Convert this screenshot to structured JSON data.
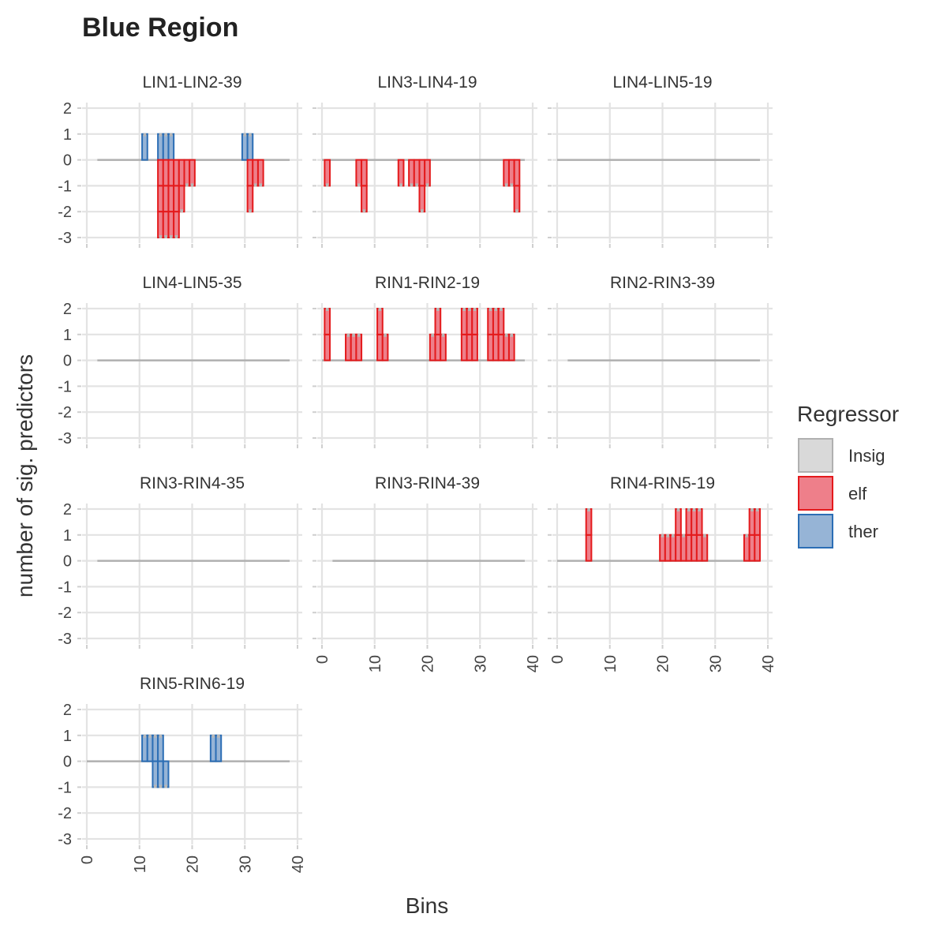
{
  "chart_data": {
    "type": "bar",
    "title": "Blue Region",
    "xlabel": "Bins",
    "ylabel": "number of sig. predictors",
    "xlim": [
      0,
      40
    ],
    "ylim": [
      -3,
      2
    ],
    "x_ticks": [
      0,
      10,
      20,
      30,
      40
    ],
    "y_ticks": [
      2,
      1,
      0,
      -1,
      -2,
      -3
    ],
    "grid": true,
    "legend": {
      "title": "Regressor",
      "placement": "right",
      "entries": [
        {
          "label": "Insig",
          "fill": "#d9d9d9",
          "stroke": "#b0b0b0"
        },
        {
          "label": "elf",
          "fill": "#ee7f8a",
          "stroke": "#e41a1c"
        },
        {
          "label": "ther",
          "fill": "#96b4d6",
          "stroke": "#2c6eb5"
        }
      ]
    },
    "panels": [
      {
        "name": "LIN1-LIN2-39",
        "insig_x": [
          2,
          38
        ],
        "bars": [
          {
            "x": 11,
            "value": 1,
            "regressor": "ther"
          },
          {
            "x": 14,
            "value": 1,
            "regressor": "ther"
          },
          {
            "x": 15,
            "value": 1,
            "regressor": "ther"
          },
          {
            "x": 16,
            "value": 1,
            "regressor": "ther"
          },
          {
            "x": 30,
            "value": 1,
            "regressor": "ther"
          },
          {
            "x": 31,
            "value": 1,
            "regressor": "ther"
          },
          {
            "x": 14,
            "value": -3,
            "regressor": "elf"
          },
          {
            "x": 15,
            "value": -3,
            "regressor": "elf"
          },
          {
            "x": 16,
            "value": -3,
            "regressor": "elf"
          },
          {
            "x": 17,
            "value": -3,
            "regressor": "elf"
          },
          {
            "x": 18,
            "value": -2,
            "regressor": "elf"
          },
          {
            "x": 19,
            "value": -1,
            "regressor": "elf"
          },
          {
            "x": 20,
            "value": -1,
            "regressor": "elf"
          },
          {
            "x": 31,
            "value": -2,
            "regressor": "elf"
          },
          {
            "x": 32,
            "value": -1,
            "regressor": "elf"
          },
          {
            "x": 33,
            "value": -1,
            "regressor": "elf"
          }
        ]
      },
      {
        "name": "LIN3-LIN4-19",
        "insig_x": [
          0,
          38
        ],
        "bars": [
          {
            "x": 1,
            "value": -1,
            "regressor": "elf"
          },
          {
            "x": 7,
            "value": -1,
            "regressor": "elf"
          },
          {
            "x": 8,
            "value": -2,
            "regressor": "elf"
          },
          {
            "x": 15,
            "value": -1,
            "regressor": "elf"
          },
          {
            "x": 17,
            "value": -1,
            "regressor": "elf"
          },
          {
            "x": 18,
            "value": -1,
            "regressor": "elf"
          },
          {
            "x": 19,
            "value": -2,
            "regressor": "elf"
          },
          {
            "x": 20,
            "value": -1,
            "regressor": "elf"
          },
          {
            "x": 35,
            "value": -1,
            "regressor": "elf"
          },
          {
            "x": 36,
            "value": -1,
            "regressor": "elf"
          },
          {
            "x": 37,
            "value": -2,
            "regressor": "elf"
          }
        ]
      },
      {
        "name": "LIN4-LIN5-19",
        "insig_x": [
          0,
          38
        ],
        "bars": []
      },
      {
        "name": "LIN4-LIN5-35",
        "insig_x": [
          2,
          38
        ],
        "bars": []
      },
      {
        "name": "RIN1-RIN2-19",
        "insig_x": [
          0,
          38
        ],
        "bars": [
          {
            "x": 1,
            "value": 2,
            "regressor": "elf"
          },
          {
            "x": 5,
            "value": 1,
            "regressor": "elf"
          },
          {
            "x": 6,
            "value": 1,
            "regressor": "elf"
          },
          {
            "x": 7,
            "value": 1,
            "regressor": "elf"
          },
          {
            "x": 11,
            "value": 2,
            "regressor": "elf"
          },
          {
            "x": 12,
            "value": 1,
            "regressor": "elf"
          },
          {
            "x": 21,
            "value": 1,
            "regressor": "elf"
          },
          {
            "x": 22,
            "value": 2,
            "regressor": "elf"
          },
          {
            "x": 23,
            "value": 1,
            "regressor": "elf"
          },
          {
            "x": 27,
            "value": 2,
            "regressor": "elf"
          },
          {
            "x": 28,
            "value": 2,
            "regressor": "elf"
          },
          {
            "x": 29,
            "value": 2,
            "regressor": "elf"
          },
          {
            "x": 32,
            "value": 2,
            "regressor": "elf"
          },
          {
            "x": 33,
            "value": 2,
            "regressor": "elf"
          },
          {
            "x": 34,
            "value": 2,
            "regressor": "elf"
          },
          {
            "x": 35,
            "value": 1,
            "regressor": "elf"
          },
          {
            "x": 36,
            "value": 1,
            "regressor": "elf"
          }
        ]
      },
      {
        "name": "RIN2-RIN3-39",
        "insig_x": [
          2,
          38
        ],
        "bars": []
      },
      {
        "name": "RIN3-RIN4-35",
        "insig_x": [
          2,
          38
        ],
        "bars": []
      },
      {
        "name": "RIN3-RIN4-39",
        "insig_x": [
          2,
          38
        ],
        "bars": []
      },
      {
        "name": "RIN4-RIN5-19",
        "insig_x": [
          0,
          38
        ],
        "bars": [
          {
            "x": 6,
            "value": 2,
            "regressor": "elf"
          },
          {
            "x": 20,
            "value": 1,
            "regressor": "elf"
          },
          {
            "x": 21,
            "value": 1,
            "regressor": "elf"
          },
          {
            "x": 22,
            "value": 1,
            "regressor": "elf"
          },
          {
            "x": 23,
            "value": 2,
            "regressor": "elf"
          },
          {
            "x": 24,
            "value": 1,
            "regressor": "elf"
          },
          {
            "x": 25,
            "value": 2,
            "regressor": "elf"
          },
          {
            "x": 26,
            "value": 2,
            "regressor": "elf"
          },
          {
            "x": 27,
            "value": 2,
            "regressor": "elf"
          },
          {
            "x": 28,
            "value": 1,
            "regressor": "elf"
          },
          {
            "x": 36,
            "value": 1,
            "regressor": "elf"
          },
          {
            "x": 37,
            "value": 2,
            "regressor": "elf"
          },
          {
            "x": 38,
            "value": 2,
            "regressor": "elf"
          }
        ]
      },
      {
        "name": "RIN5-RIN6-19",
        "insig_x": [
          0,
          38
        ],
        "bars": [
          {
            "x": 11,
            "value": 1,
            "regressor": "ther"
          },
          {
            "x": 12,
            "value": 1,
            "regressor": "ther"
          },
          {
            "x": 13,
            "value": 1,
            "regressor": "ther"
          },
          {
            "x": 14,
            "value": 1,
            "regressor": "ther"
          },
          {
            "x": 24,
            "value": 1,
            "regressor": "ther"
          },
          {
            "x": 25,
            "value": 1,
            "regressor": "ther"
          },
          {
            "x": 13,
            "value": -1,
            "regressor": "ther"
          },
          {
            "x": 14,
            "value": -1,
            "regressor": "ther"
          },
          {
            "x": 15,
            "value": -1,
            "regressor": "ther"
          }
        ]
      }
    ]
  }
}
